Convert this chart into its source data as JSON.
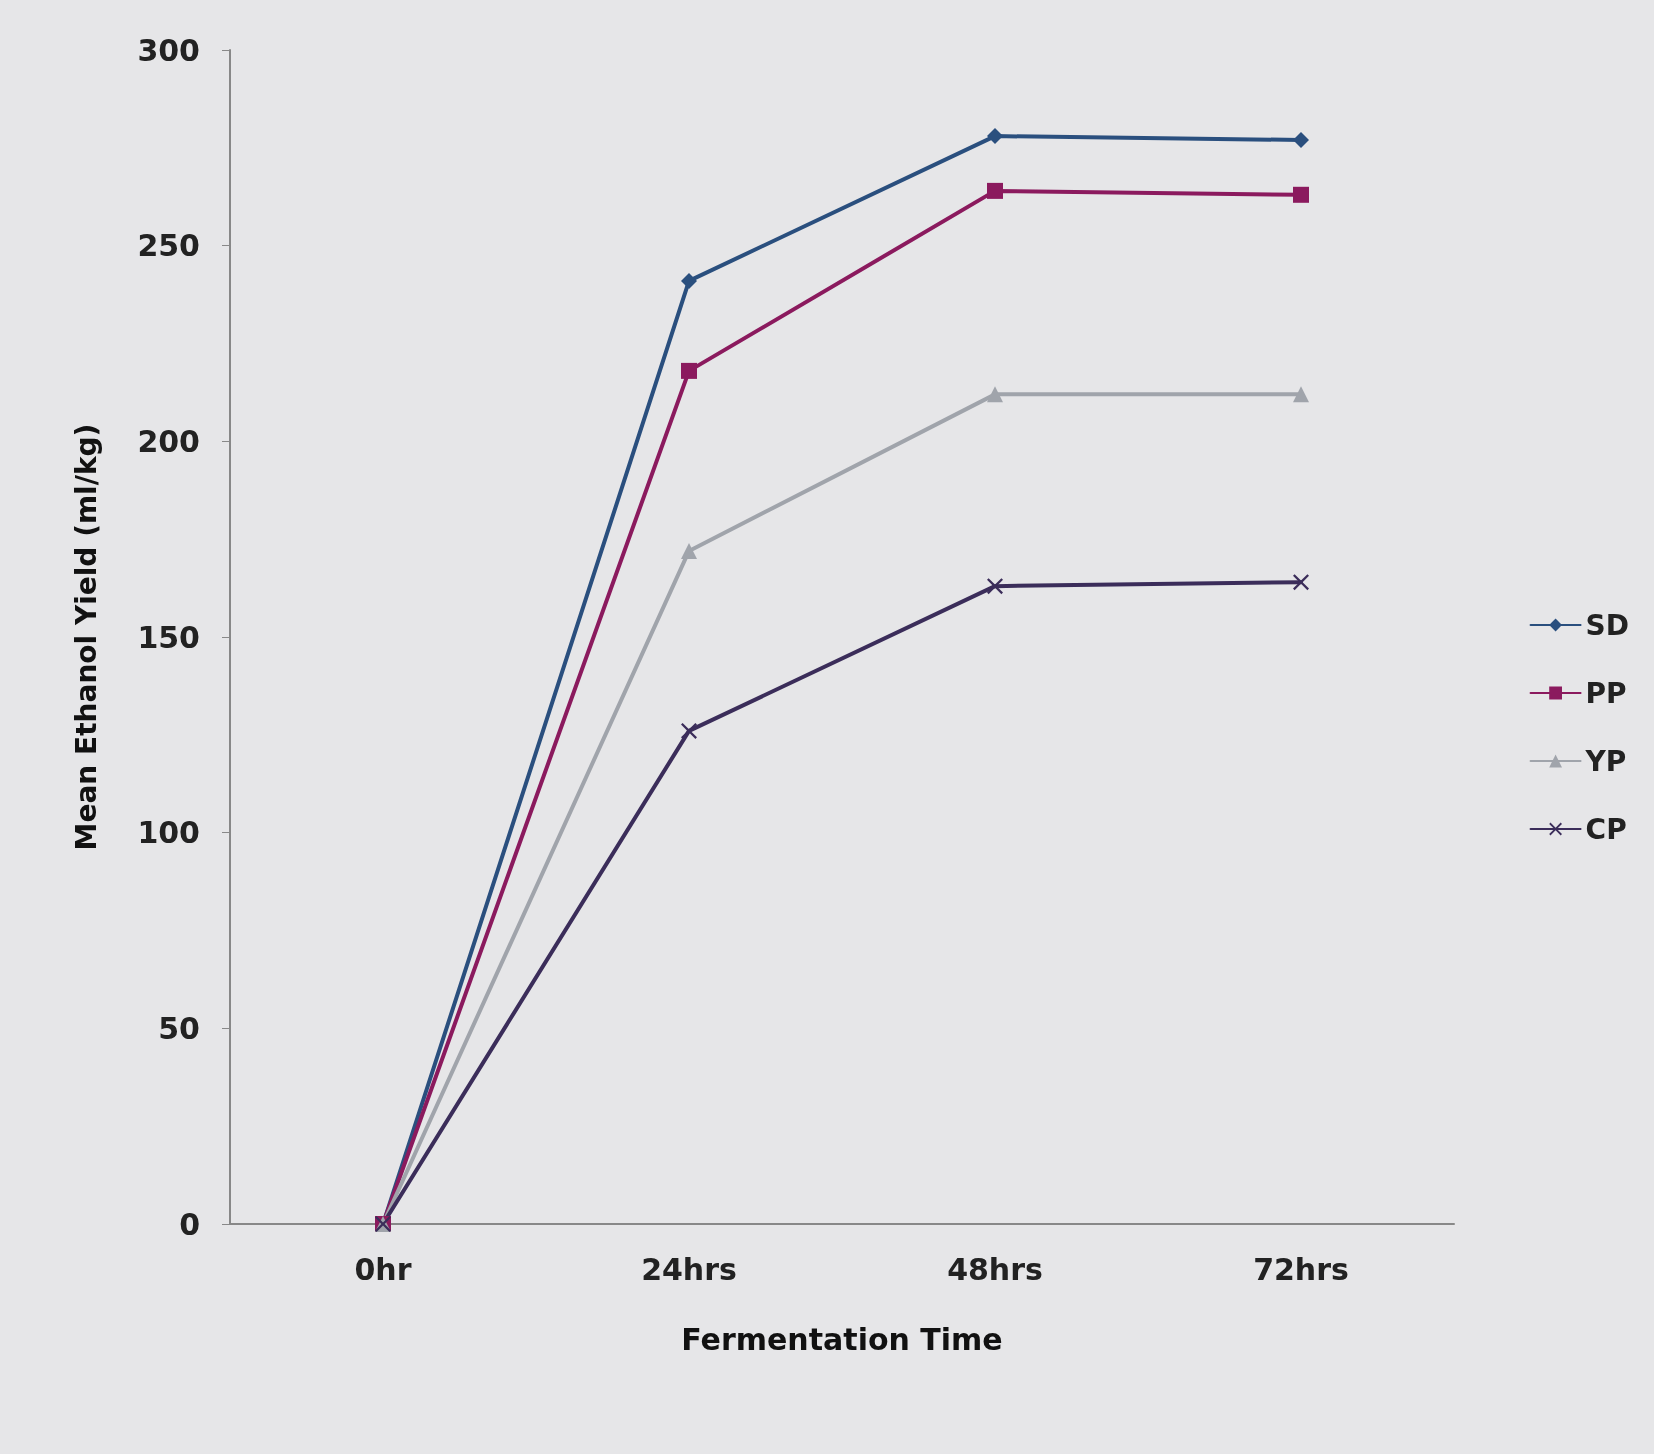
{
  "chart_data": {
    "type": "line",
    "xlabel": "Fermentation Time",
    "ylabel": "Mean Ethanol Yield (ml/kg)",
    "categories": [
      "0hr",
      "24hrs",
      "48hrs",
      "72hrs"
    ],
    "series": [
      {
        "name": "SD",
        "color": "#2a4f7e",
        "marker": "diamond",
        "values": [
          0,
          241,
          278,
          277
        ]
      },
      {
        "name": "PP",
        "color": "#8b1a5e",
        "marker": "square",
        "values": [
          0,
          218,
          264,
          263
        ]
      },
      {
        "name": "YP",
        "color": "#a0a4ab",
        "marker": "triangle",
        "values": [
          0,
          172,
          212,
          212
        ]
      },
      {
        "name": "CP",
        "color": "#3b2d5a",
        "marker": "cross",
        "values": [
          0,
          126,
          163,
          164
        ]
      }
    ],
    "ylim": [
      0,
      300
    ],
    "yticks": [
      0,
      50,
      100,
      150,
      200,
      250,
      300
    ],
    "grid": false,
    "legend": "right"
  }
}
